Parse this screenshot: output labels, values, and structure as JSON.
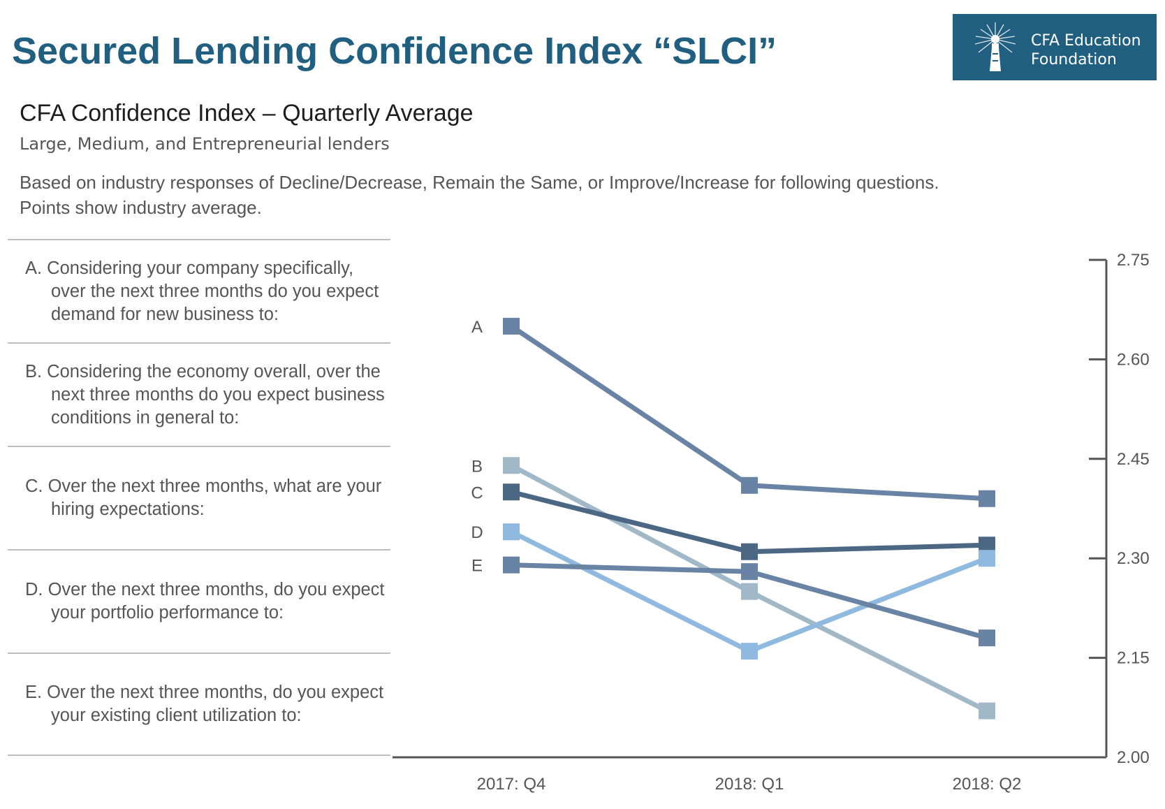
{
  "header": {
    "title": "Secured Lending Confidence Index “SLCI”",
    "logo_line1": "CFA Education",
    "logo_line2": "Foundation"
  },
  "subtitle": "CFA Confidence Index – Quarterly Average",
  "subsubtitle": "Large, Medium, and Entrepreneurial lenders",
  "description": {
    "line1": "Based on industry responses of Decline/Decrease, Remain the Same, or Improve/Increase for following questions.",
    "line2": "Points show industry average."
  },
  "questions": [
    "A. Considering your company specifically, over the next three months do you expect demand for new business to:",
    "B. Considering the economy overall, over the next three months do you expect business conditions in general to:",
    "C. Over the next three months, what are your hiring expectations:",
    "D. Over the next three months, do you expect your portfolio performance to:",
    "E. Over the next three months, do you expect your existing client utilization to:"
  ],
  "colors": {
    "title": "#215f80",
    "A": "#6883a3",
    "B": "#a0b8c8",
    "C": "#4c6784",
    "D": "#8fb9de",
    "E": "#6883a3"
  },
  "chart_data": {
    "type": "line",
    "title": "",
    "xlabel": "",
    "ylabel": "",
    "categories": [
      "2017: Q4",
      "2018: Q1",
      "2018: Q2"
    ],
    "ylim": [
      2.0,
      2.75
    ],
    "yticks": [
      "2.75",
      "2.60",
      "2.45",
      "2.30",
      "2.15",
      "2.00"
    ],
    "y_axis_position": "right",
    "grid": false,
    "series": [
      {
        "name": "A",
        "values": [
          2.65,
          2.41,
          2.39
        ]
      },
      {
        "name": "B",
        "values": [
          2.44,
          2.25,
          2.07
        ]
      },
      {
        "name": "C",
        "values": [
          2.4,
          2.31,
          2.32
        ]
      },
      {
        "name": "D",
        "values": [
          2.34,
          2.16,
          2.3
        ]
      },
      {
        "name": "E",
        "values": [
          2.29,
          2.28,
          2.18
        ]
      }
    ]
  }
}
